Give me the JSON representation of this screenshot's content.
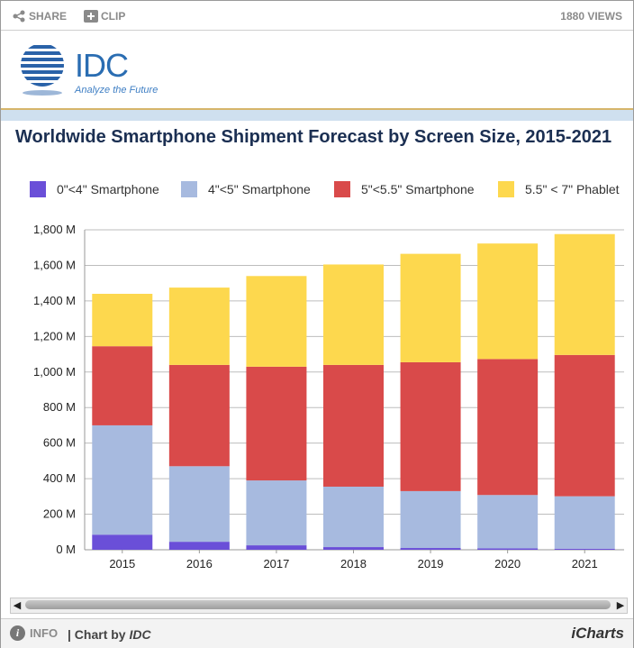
{
  "toolbar": {
    "share_label": "SHARE",
    "clip_label": "CLIP",
    "views": "1880 VIEWS"
  },
  "logo": {
    "name": "IDC",
    "tagline": "Analyze the Future"
  },
  "colors": {
    "c0": "#6a4fd8",
    "c1": "#a7badf",
    "c2": "#d94a4a",
    "c3": "#fdd84e",
    "grid": "#bdbdbd"
  },
  "chart_data": {
    "type": "bar",
    "stacked": true,
    "title": "Worldwide Smartphone Shipment Forecast by Screen Size, 2015-2021",
    "categories": [
      "2015",
      "2016",
      "2017",
      "2018",
      "2019",
      "2020",
      "2021"
    ],
    "series": [
      {
        "name": "0\"<4\" Smartphone",
        "values": [
          85,
          45,
          25,
          15,
          10,
          8,
          6
        ]
      },
      {
        "name": "4\"<5\" Smartphone",
        "values": [
          615,
          425,
          365,
          340,
          320,
          300,
          295
        ]
      },
      {
        "name": "5\"<5.5\" Smartphone",
        "values": [
          445,
          570,
          640,
          685,
          725,
          765,
          795
        ]
      },
      {
        "name": "5.5\" < 7\" Phablet",
        "values": [
          295,
          435,
          510,
          565,
          610,
          650,
          680
        ]
      }
    ],
    "yticks": [
      "0 M",
      "200 M",
      "400 M",
      "600 M",
      "800 M",
      "1,000 M",
      "1,200 M",
      "1,400 M",
      "1,600 M",
      "1,800 M"
    ],
    "ylim": [
      0,
      1800
    ],
    "grid": true,
    "legend_position": "top"
  },
  "footer": {
    "info_label": "INFO",
    "chart_by_prefix": "| Chart by ",
    "chart_by_source": "IDC",
    "brand": "iCharts"
  }
}
